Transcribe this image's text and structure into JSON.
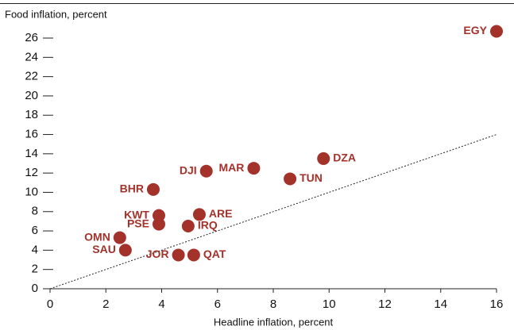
{
  "chart_data": {
    "type": "scatter",
    "ylabel": "Food inflation, percent",
    "xlabel": "Headline inflation, percent",
    "labels": [
      "EGY",
      "DZA",
      "MAR",
      "TUN",
      "DJI",
      "BHR",
      "KWT",
      "PSE",
      "ARE",
      "IRQ",
      "OMN",
      "SAU",
      "JOR",
      "QAT"
    ],
    "x": [
      16.0,
      9.8,
      7.3,
      8.6,
      5.6,
      3.7,
      3.9,
      3.9,
      5.35,
      4.95,
      2.5,
      2.7,
      4.6,
      5.15
    ],
    "values": [
      26.7,
      13.5,
      12.5,
      11.4,
      12.2,
      10.3,
      7.6,
      6.7,
      7.7,
      6.5,
      5.3,
      4.0,
      3.5,
      3.5
    ],
    "color": "#a3322b",
    "xlim": [
      0,
      16
    ],
    "ylim": [
      0,
      26
    ],
    "xticks": [
      0,
      2,
      4,
      6,
      8,
      10,
      12,
      14,
      16
    ],
    "yticks": [
      0,
      2,
      4,
      6,
      8,
      10,
      12,
      14,
      16,
      18,
      20,
      22,
      24,
      26
    ],
    "identity_line": true
  }
}
